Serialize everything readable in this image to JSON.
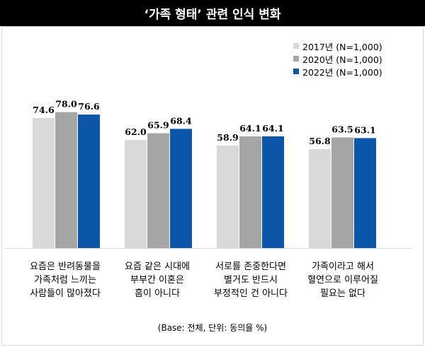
{
  "chart_data": {
    "type": "bar",
    "title": "‘가족 형태’ 관련 인식 변화",
    "categories": [
      "요즘은 반려동물을\n가족처럼 느끼는\n사람들이 많아졌다",
      "요즘 같은 시대에\n부부간 이혼은\n흠이 아니다",
      "서로를 존중한다면\n별거도 반드시\n부정적인 건 아니다",
      "가족이라고 해서\n혈연으로 이루어질\n필요는 없다"
    ],
    "series": [
      {
        "name": "2017년 (N=1,000)",
        "color": "#d9d9d9",
        "values": [
          74.6,
          62.0,
          58.9,
          56.8
        ],
        "labels": [
          "74.6",
          "62.0",
          "58.9",
          "56.8"
        ]
      },
      {
        "name": "2020년 (N=1,000)",
        "color": "#a6a6a6",
        "values": [
          78.0,
          65.9,
          64.1,
          63.5
        ],
        "labels": [
          "78.0",
          "65.9",
          "64.1",
          "63.5"
        ]
      },
      {
        "name": "2022년 (N=1,000)",
        "color": "#0b56a8",
        "values": [
          76.6,
          68.4,
          64.1,
          63.1
        ],
        "labels": [
          "76.6",
          "68.4",
          "64.1",
          "63.1"
        ]
      }
    ],
    "legend_position": "top-right",
    "footnote": "(Base: 전체, 단위: 동의율 %)"
  }
}
